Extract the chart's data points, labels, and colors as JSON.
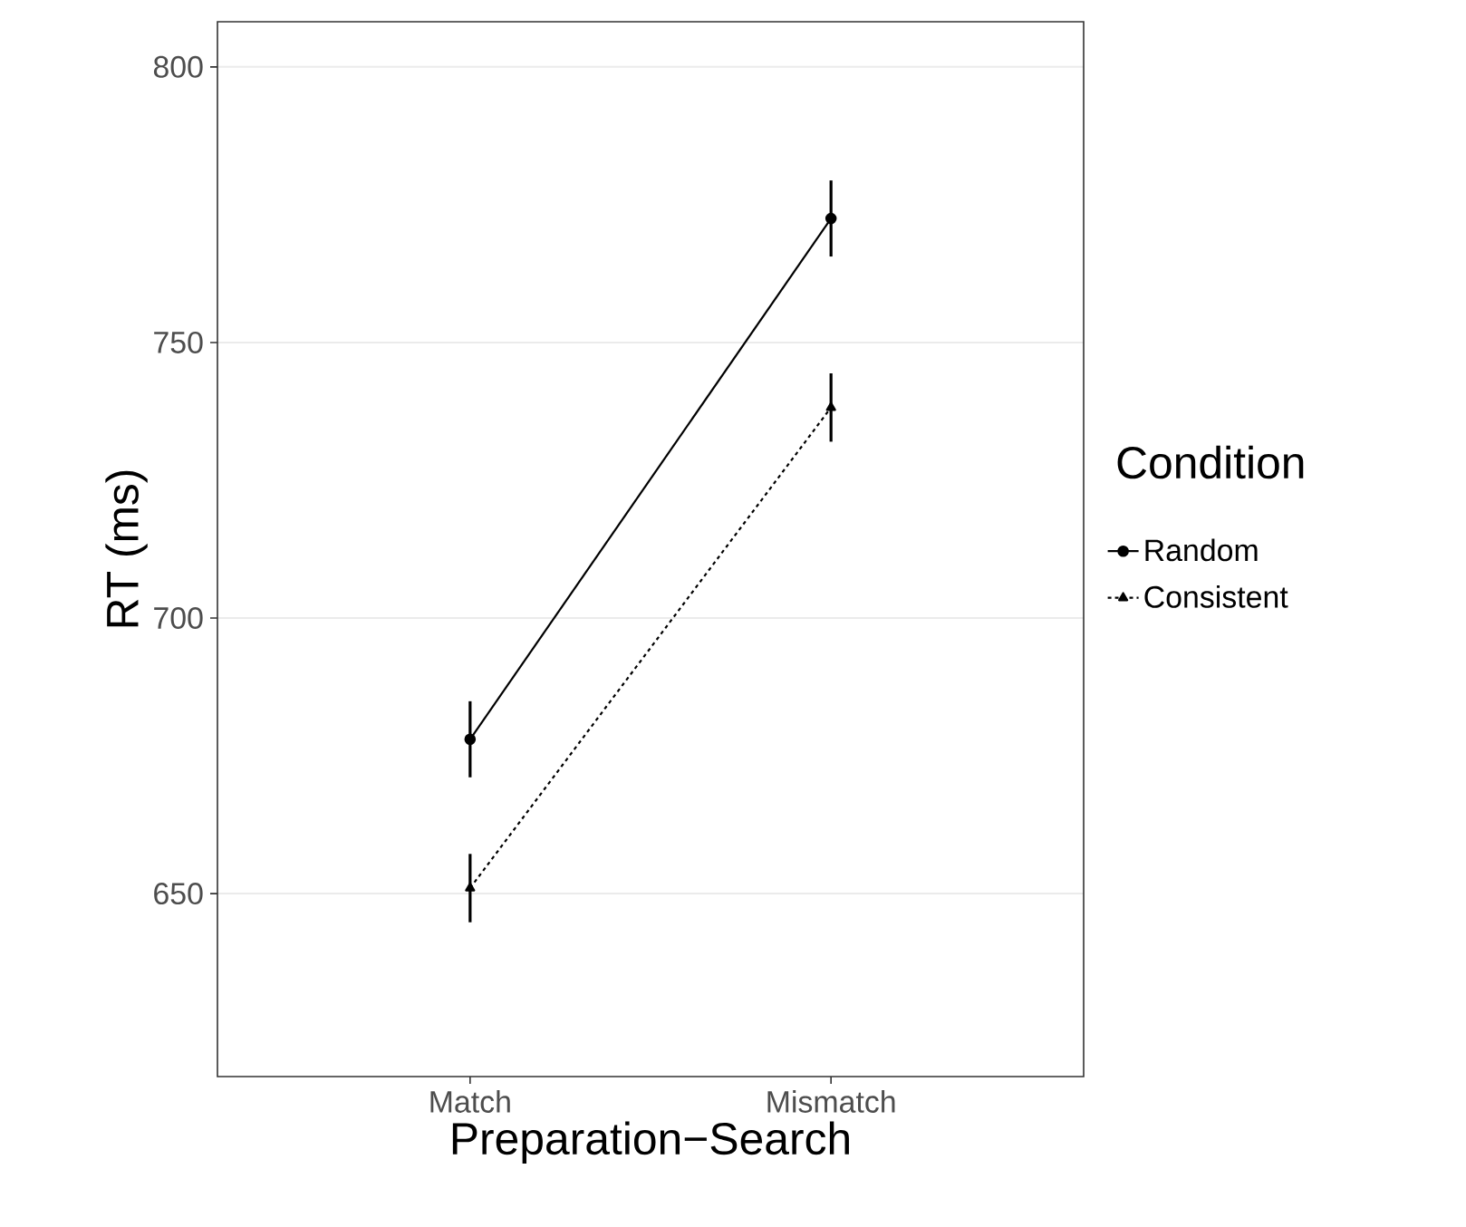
{
  "chart_data": {
    "type": "line",
    "xlabel": "Preparation−Search",
    "ylabel": "RT (ms)",
    "legend_title": "Condition",
    "categories": [
      "Match",
      "Mismatch"
    ],
    "series": [
      {
        "name": "Random",
        "color": "#000000",
        "values": [
          678,
          772.5
        ],
        "errors": [
          6.9,
          6.9
        ],
        "marker": "circle",
        "line_style": "solid"
      },
      {
        "name": "Consistent",
        "color": "#000000",
        "values": [
          651,
          738.2
        ],
        "errors": [
          6.2,
          6.2
        ],
        "marker": "triangle",
        "line_style": "dotted"
      }
    ],
    "ylim": [
      616.8,
      808.2
    ],
    "yticks": [
      650,
      700,
      750,
      800
    ],
    "grid": "y",
    "legend": "right"
  }
}
